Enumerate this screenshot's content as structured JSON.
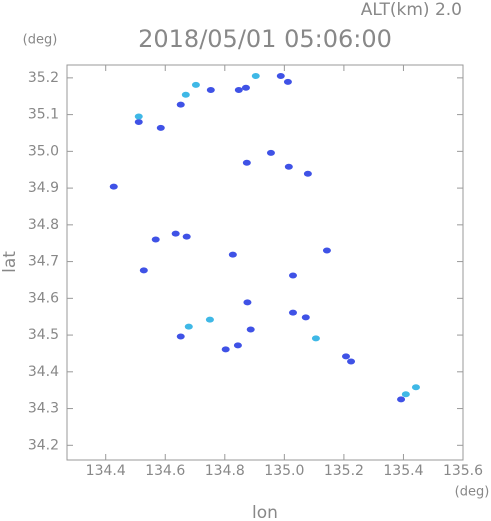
{
  "chart_data": {
    "type": "scatter",
    "title": "2018/05/01 05:06:00",
    "altitude_label": "ALT(km) 2.0",
    "y_unit": "(deg)",
    "x_unit": "(deg)",
    "xlabel": "lon",
    "ylabel": "lat",
    "xlim": [
      134.27,
      135.6
    ],
    "ylim": [
      34.16,
      35.235
    ],
    "xticks": [
      134.4,
      134.6,
      134.8,
      {
        "value": 135,
        "label": "135.0"
      },
      135.2,
      135.4,
      135.6
    ],
    "yticks": [
      34.2,
      34.3,
      34.4,
      34.5,
      34.6,
      34.7,
      34.8,
      34.9,
      {
        "value": 35,
        "label": "35.0"
      },
      35.1,
      35.2
    ],
    "series": [
      {
        "color": "#3f52e6",
        "x": [
          134.427,
          134.585,
          134.652,
          134.753,
          134.847,
          134.871,
          134.988,
          135.012,
          134.874,
          134.955,
          135.015,
          135.079,
          134.568,
          134.635,
          134.672,
          134.528,
          134.827,
          135.029,
          135.143,
          134.876,
          135.029,
          135.072,
          134.652,
          134.887,
          134.803,
          134.844,
          135.207,
          135.224,
          135.392,
          134.511
        ],
        "y": [
          34.904,
          35.064,
          35.127,
          35.167,
          35.167,
          35.173,
          35.205,
          35.189,
          34.969,
          34.996,
          34.958,
          34.939,
          34.76,
          34.776,
          34.768,
          34.676,
          34.719,
          34.662,
          34.73,
          34.589,
          34.561,
          34.548,
          34.496,
          34.515,
          34.461,
          34.472,
          34.442,
          34.428,
          34.325,
          35.08
        ]
      },
      {
        "color": "#3fb8e6",
        "x": [
          134.511,
          134.669,
          134.703,
          134.904,
          134.75,
          134.679,
          135.106,
          135.408,
          135.442
        ],
        "y": [
          35.095,
          35.154,
          35.181,
          35.205,
          34.542,
          34.523,
          34.491,
          34.339,
          34.358
        ]
      }
    ]
  }
}
